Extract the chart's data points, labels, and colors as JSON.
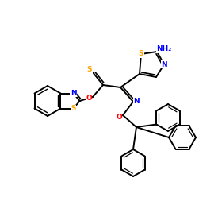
{
  "bg_color": "#ffffff",
  "atom_colors": {
    "N": "#0000ff",
    "O": "#ff0000",
    "S": "#ffa500",
    "C": "#000000"
  },
  "bond_color": "#000000"
}
